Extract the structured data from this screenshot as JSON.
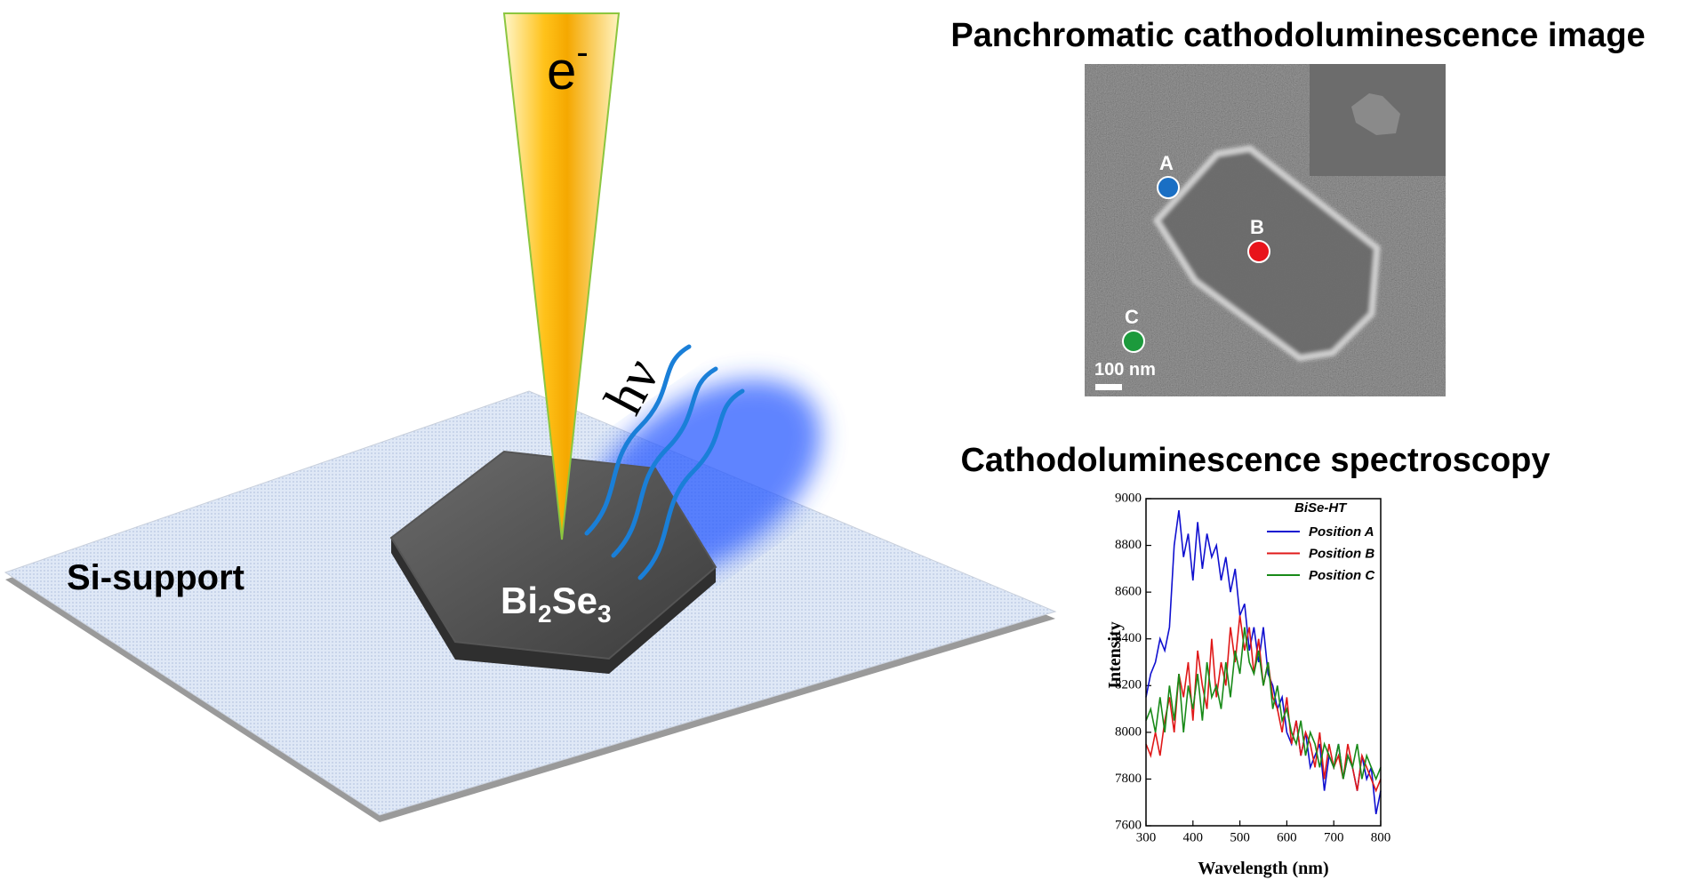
{
  "illustration": {
    "electron": "e",
    "electron_charge": "-",
    "photon": "hν",
    "substrate": "Si-support",
    "crystal": [
      "Bi",
      "2",
      "Se",
      "3"
    ]
  },
  "sem_panel": {
    "title": "Panchromatic cathodoluminescence image",
    "scale_bar": "100 nm",
    "points": [
      {
        "label": "A",
        "color": "#1a6fc4"
      },
      {
        "label": "B",
        "color": "#e8141b"
      },
      {
        "label": "C",
        "color": "#1c9a3c"
      }
    ]
  },
  "chart_data": {
    "type": "line",
    "title": "Cathodoluminescence spectroscopy",
    "legend_title": "BiSe-HT",
    "x_label": "Wavelength (nm)",
    "y_label": "Intensity",
    "x": [
      300,
      310,
      320,
      330,
      340,
      350,
      360,
      370,
      380,
      390,
      400,
      410,
      420,
      430,
      440,
      450,
      460,
      470,
      480,
      490,
      500,
      510,
      520,
      530,
      540,
      550,
      560,
      570,
      580,
      590,
      600,
      610,
      620,
      630,
      640,
      650,
      660,
      670,
      680,
      690,
      700,
      710,
      720,
      730,
      740,
      750,
      760,
      770,
      780,
      790,
      800
    ],
    "series": [
      {
        "name": "Position A",
        "color": "#1010d0",
        "values": [
          8150,
          8250,
          8300,
          8400,
          8350,
          8450,
          8800,
          8950,
          8750,
          8850,
          8650,
          8900,
          8700,
          8850,
          8750,
          8800,
          8650,
          8750,
          8600,
          8700,
          8500,
          8550,
          8350,
          8450,
          8300,
          8450,
          8250,
          8200,
          8100,
          8150,
          8000,
          7950,
          8050,
          7900,
          8000,
          7850,
          7900,
          7950,
          7750,
          7900,
          7850,
          7950,
          7800,
          7900,
          7850,
          7750,
          7900,
          7800,
          7850,
          7650,
          7750
        ]
      },
      {
        "name": "Position B",
        "color": "#e01818",
        "values": [
          7950,
          7900,
          8000,
          7900,
          8050,
          8150,
          8000,
          8250,
          8150,
          8300,
          8050,
          8350,
          8200,
          8100,
          8400,
          8150,
          8300,
          8200,
          8450,
          8300,
          8500,
          8350,
          8450,
          8250,
          8400,
          8200,
          8300,
          8150,
          8100,
          8000,
          8150,
          7950,
          8050,
          7900,
          8000,
          7950,
          7850,
          8000,
          7800,
          7950,
          7850,
          7900,
          7800,
          7950,
          7850,
          7750,
          7900,
          7850,
          7800,
          7750,
          7800
        ]
      },
      {
        "name": "Position C",
        "color": "#188a18",
        "values": [
          8050,
          8100,
          8000,
          8150,
          8000,
          8200,
          8050,
          8250,
          8000,
          8200,
          8100,
          8250,
          8050,
          8300,
          8150,
          8200,
          8100,
          8300,
          8150,
          8350,
          8250,
          8450,
          8300,
          8250,
          8350,
          8200,
          8300,
          8100,
          8200,
          8050,
          8100,
          8000,
          7950,
          8050,
          7900,
          8000,
          7950,
          7850,
          7950,
          7900,
          7850,
          7950,
          7800,
          7900,
          7850,
          7950,
          7800,
          7900,
          7850,
          7800,
          7850
        ]
      }
    ],
    "xlim": [
      300,
      800
    ],
    "ylim": [
      7600,
      9000
    ],
    "xticks": [
      300,
      400,
      500,
      600,
      700,
      800
    ],
    "yticks": [
      7600,
      7800,
      8000,
      8200,
      8400,
      8600,
      8800,
      9000
    ]
  }
}
